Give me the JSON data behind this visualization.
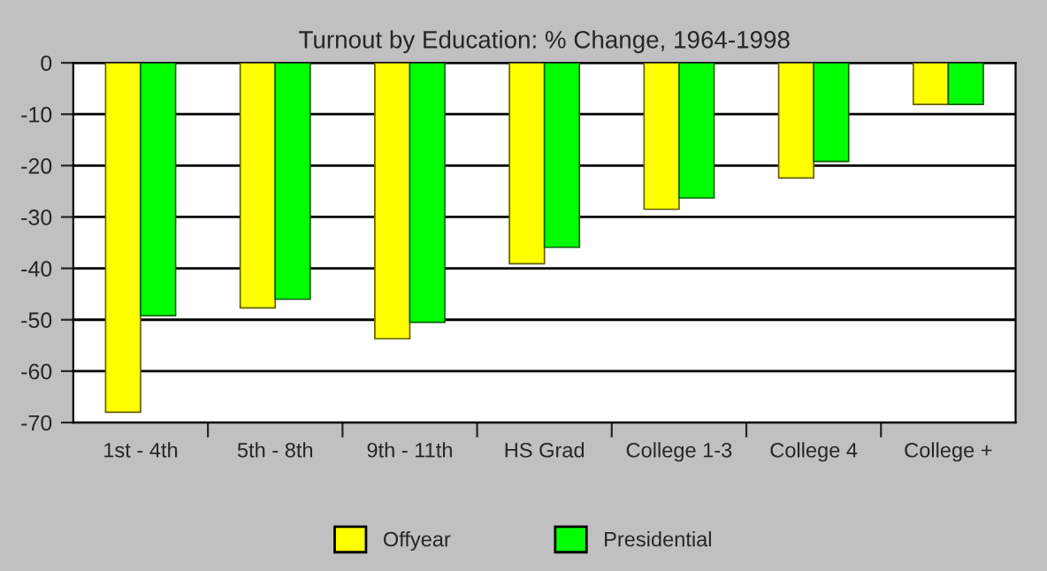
{
  "chart_data": {
    "type": "bar",
    "title": "Turnout by Education: % Change, 1964-1998",
    "categories": [
      "1st - 4th",
      "5th - 8th",
      "9th - 11th",
      "HS Grad",
      "College 1-3",
      "College 4",
      "College +"
    ],
    "series": [
      {
        "name": "Offyear",
        "color": "#ffff00",
        "values": [
          -68,
          -47.7,
          -53.7,
          -39.1,
          -28.5,
          -22.4,
          -8.1
        ]
      },
      {
        "name": "Presidential",
        "color": "#00ff00",
        "values": [
          -49.2,
          -46,
          -50.5,
          -35.9,
          -26.3,
          -19.2,
          -8.1
        ]
      }
    ],
    "ylim": [
      -70,
      0
    ],
    "yticks": [
      -70,
      -60,
      -50,
      -40,
      -30,
      -20,
      -10,
      0
    ],
    "grid": "y",
    "legend": "bottom"
  }
}
